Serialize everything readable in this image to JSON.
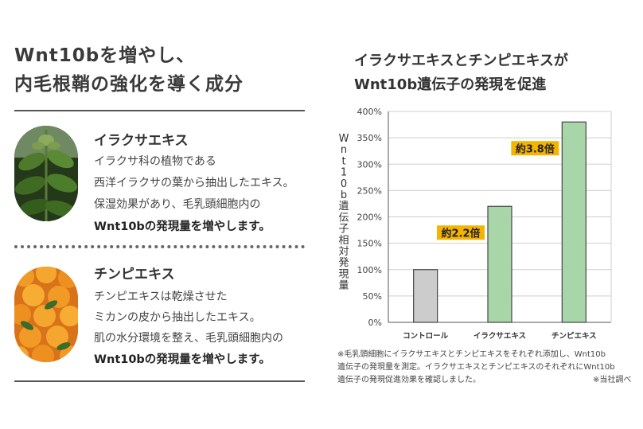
{
  "left": {
    "title_line1": "Wnt10bを増やし、",
    "title_line2": "内毛根鞘の強化を導く成分",
    "sections": [
      {
        "title": "イラクサエキス",
        "lines": [
          "イラクサ科の植物である",
          "西洋イラクサの葉から抽出したエキス。",
          "保湿効果があり、毛乳頭細胞内の"
        ],
        "bold_line": "Wnt10bの発現量を増やします。"
      },
      {
        "title": "チンピエキス",
        "lines": [
          "チンピエキスは乾燥させた",
          "ミカンの皮から抽出したエキス。",
          "肌の水分環境を整え、毛乳頭細胞内の"
        ],
        "bold_line": "Wnt10bの発現量を増やします。"
      }
    ]
  },
  "chart_title_line1": "イラクサエキスとチンピエキスが",
  "chart_title_line2": "Wnt10b遺伝子の発現を促進",
  "chart_data": {
    "type": "bar",
    "categories": [
      "コントロール",
      "イラクサエキス",
      "チンピエキス"
    ],
    "values": [
      100,
      220,
      380
    ],
    "ylabel": "Wnt10b遺伝子相対発現量",
    "ylim": [
      0,
      400
    ],
    "yticks": [
      0,
      50,
      100,
      150,
      200,
      250,
      300,
      350,
      400
    ],
    "ytick_labels": [
      "0%",
      "50%",
      "100%",
      "150%",
      "200%",
      "250%",
      "300%",
      "350%",
      "400%"
    ],
    "grid": true,
    "colors": [
      "#cccccc",
      "#a9d6a9",
      "#a9d6a9"
    ],
    "annotations": [
      {
        "category": "イラクサエキス",
        "text": "約2.2倍"
      },
      {
        "category": "チンピエキス",
        "text": "約3.8倍"
      }
    ],
    "annotation_color": "#f5b400"
  },
  "footnote_lines": [
    "※毛乳頭細胞にイラクサエキスとチンピエキスをそれぞれ添加し、Wnt10b",
    "遺伝子の発現量を測定。イラクサエキスとチンピエキスのそれぞれにWnt10b",
    "遺伝子の発現促進効果を確認しました。"
  ],
  "source_note": "※当社調べ"
}
